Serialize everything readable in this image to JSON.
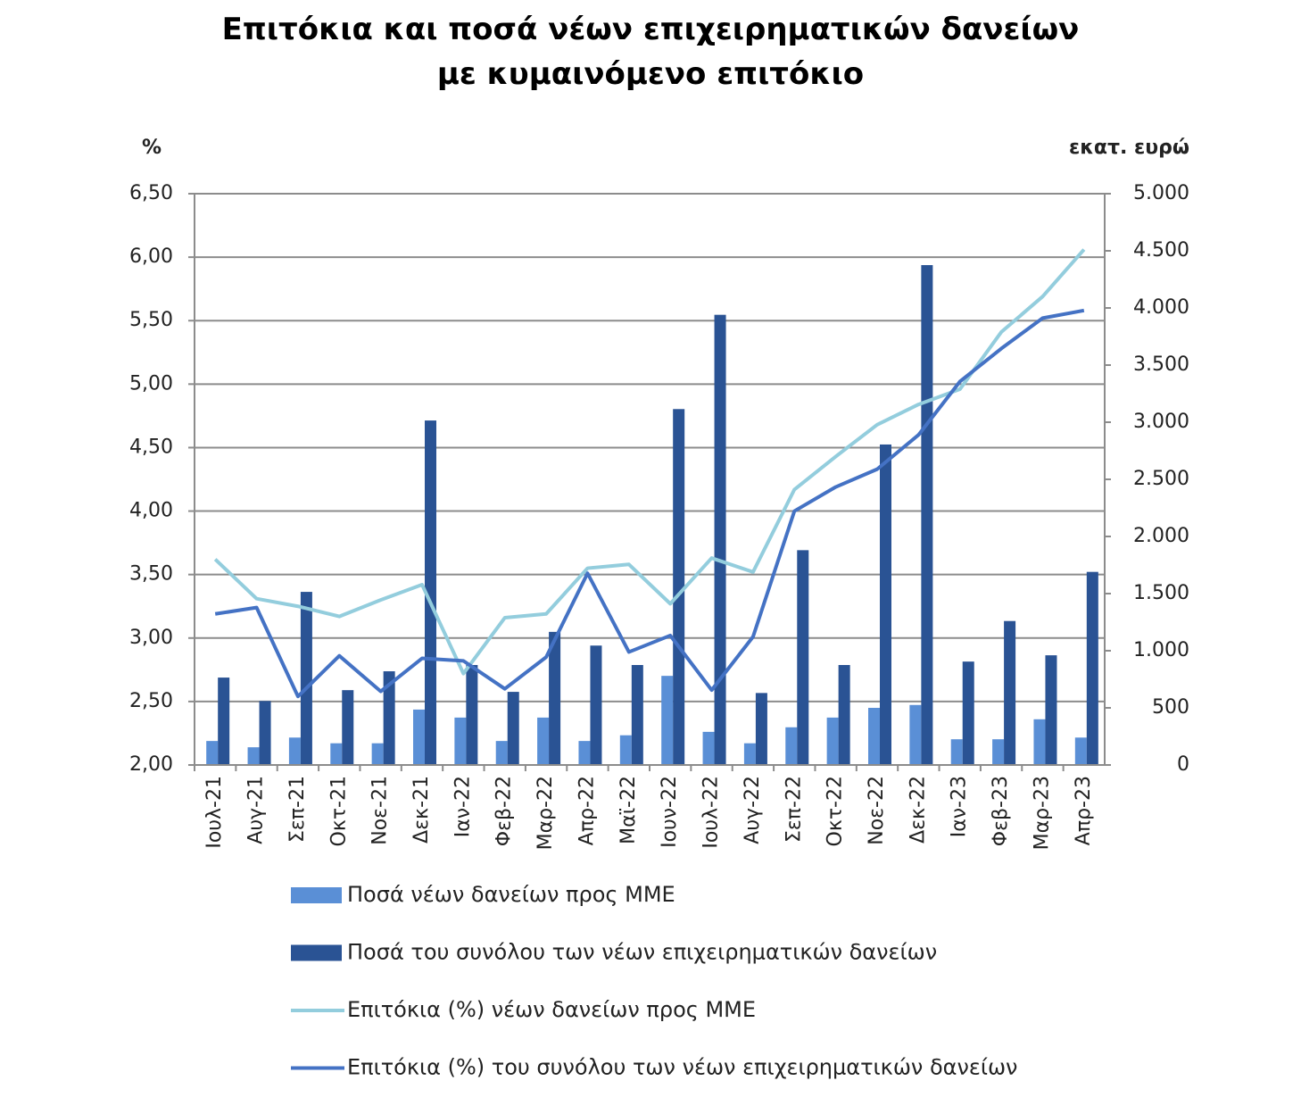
{
  "chart_data": {
    "type": "bar",
    "title": "Επιτόκια και ποσά νέων επιχειρηματικών δανείων με κυμαινόμενο επιτόκιο",
    "y_axis_label": "%",
    "y2_axis_label": "εκατ. ευρώ",
    "categories": [
      "Ιουλ-21",
      "Αυγ-21",
      "Σεπ-21",
      "Οκτ-21",
      "Νοε-21",
      "Δεκ-21",
      "Ιαν-22",
      "Φεβ-22",
      "Μαρ-22",
      "Απρ-22",
      "Μαϊ-22",
      "Ιουν-22",
      "Ιουλ-22",
      "Αυγ-22",
      "Σεπ-22",
      "Οκτ-22",
      "Νοε-22",
      "Δεκ-22",
      "Ιαν-23",
      "Φεβ-23",
      "Μαρ-23",
      "Απρ-23"
    ],
    "series": [
      {
        "name": "Ποσά νέων δανείων προς ΜΜΕ",
        "type": "bar",
        "axis": "y2",
        "color": "#5a8fd6",
        "values": [
          210,
          155,
          240,
          190,
          190,
          485,
          415,
          210,
          415,
          210,
          260,
          780,
          290,
          190,
          330,
          415,
          500,
          525,
          225,
          225,
          400,
          240
        ]
      },
      {
        "name": "Ποσά του συνόλου των νέων επιχειρηματικών δανείων",
        "type": "bar",
        "axis": "y2",
        "color": "#2a5394",
        "values": [
          765,
          560,
          1515,
          655,
          820,
          3015,
          875,
          640,
          1165,
          1045,
          875,
          3115,
          3940,
          630,
          1880,
          875,
          2805,
          4375,
          905,
          1260,
          960,
          1690
        ]
      },
      {
        "name": "Επιτόκια (%) νέων δανείων προς ΜΜΕ",
        "type": "line",
        "color": "#93cddd",
        "values": [
          3.62,
          3.31,
          3.25,
          3.17,
          3.3,
          3.42,
          2.72,
          3.16,
          3.19,
          3.55,
          3.58,
          3.27,
          3.63,
          3.52,
          4.17,
          4.43,
          4.68,
          4.84,
          4.96,
          5.41,
          5.69,
          6.06
        ]
      },
      {
        "name": "Επιτόκια (%) του συνόλου των νέων επιχειρηματικών δανείων",
        "type": "line",
        "color": "#4472c4",
        "values": [
          3.19,
          3.24,
          2.54,
          2.86,
          2.58,
          2.84,
          2.82,
          2.6,
          2.85,
          3.51,
          2.89,
          3.02,
          2.59,
          3.01,
          4.0,
          4.19,
          4.33,
          4.6,
          5.02,
          5.28,
          5.52,
          5.58
        ]
      }
    ],
    "ylim": [
      2,
      6.5
    ],
    "yticks": [
      {
        "value": 2,
        "label": "2,00"
      },
      {
        "value": 2.5,
        "label": "2,50"
      },
      {
        "value": 3,
        "label": "3,00"
      },
      {
        "value": 3.5,
        "label": "3,50"
      },
      {
        "value": 4,
        "label": "4,00"
      },
      {
        "value": 4.5,
        "label": "4,50"
      },
      {
        "value": 5,
        "label": "5,00"
      },
      {
        "value": 5.5,
        "label": "5,50"
      },
      {
        "value": 6,
        "label": "6,00"
      },
      {
        "value": 6.5,
        "label": "6,50"
      }
    ],
    "y2lim": [
      0,
      5000
    ],
    "y2ticks": [
      0,
      500,
      {
        "value": 1000,
        "label": "1.000"
      },
      {
        "value": 1500,
        "label": "1.500"
      },
      {
        "value": 2000,
        "label": "2.000"
      },
      {
        "value": 2500,
        "label": "2.500"
      },
      {
        "value": 3000,
        "label": "3.000"
      },
      {
        "value": 3500,
        "label": "3.500"
      },
      {
        "value": 4000,
        "label": "4.000"
      },
      {
        "value": 4500,
        "label": "4.500"
      },
      {
        "value": 5000,
        "label": "5.000"
      }
    ],
    "grid": true,
    "legend_position": "bottom"
  }
}
